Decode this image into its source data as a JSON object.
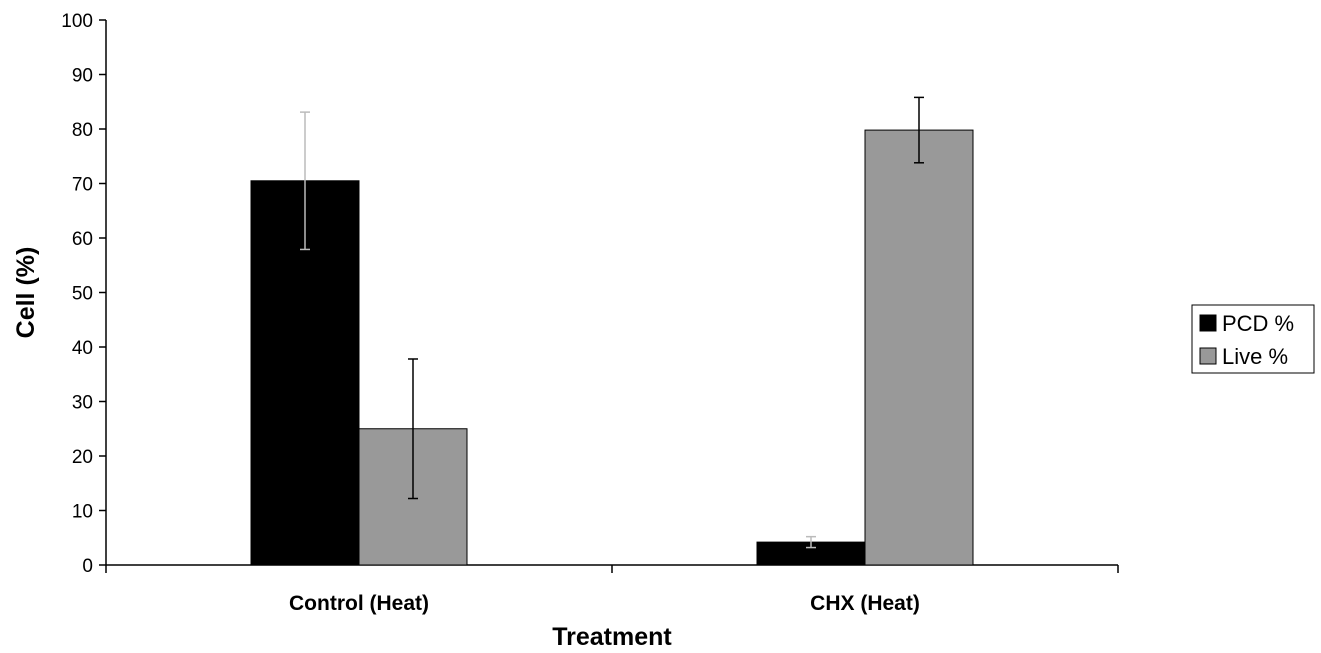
{
  "chart_data": {
    "type": "bar",
    "xlabel": "Treatment",
    "ylabel": "Cell (%)",
    "ylim": [
      0,
      100
    ],
    "yticks": [
      0,
      10,
      20,
      30,
      40,
      50,
      60,
      70,
      80,
      90,
      100
    ],
    "categories": [
      "Control (Heat)",
      "CHX (Heat)"
    ],
    "series": [
      {
        "name": "PCD %",
        "color": "#000000",
        "values": [
          70.5,
          4.2
        ],
        "error": [
          12.6,
          1.0
        ]
      },
      {
        "name": "Live %",
        "color": "#999999",
        "values": [
          25.0,
          79.8
        ],
        "error": [
          12.8,
          6.0
        ]
      }
    ],
    "grid": false,
    "legend_position": "right"
  }
}
